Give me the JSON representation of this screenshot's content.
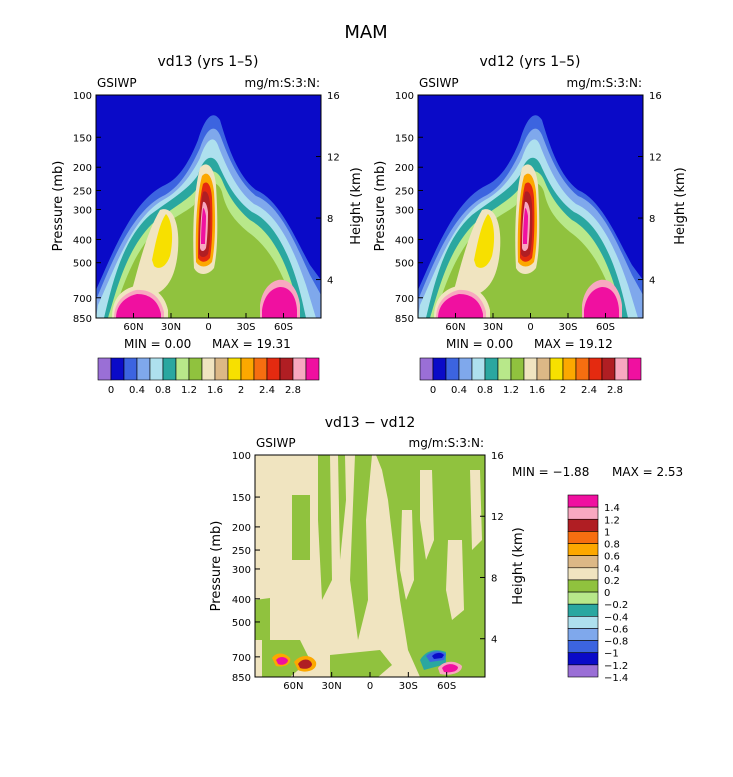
{
  "page_title": "MAM",
  "colors": {
    "background": "#ffffff",
    "scale_main": [
      "#9a6fd6",
      "#0a0ac8",
      "#3c64e0",
      "#7fa8ec",
      "#aee0ee",
      "#2aa7a0",
      "#b8e88a",
      "#90c23e",
      "#f0e4c0",
      "#dcb886",
      "#f7e000",
      "#fca800",
      "#f66e10",
      "#e42a10",
      "#b01e23",
      "#f8a8c0",
      "#f010a0"
    ],
    "scale_diff": [
      "#9a6fd6",
      "#0a0ac8",
      "#3c64e0",
      "#7fa8ec",
      "#aee0ee",
      "#2aa7a0",
      "#b8e88a",
      "#90c23e",
      "#f0e4c0",
      "#dcb886",
      "#fca800",
      "#f66e10",
      "#b01e23",
      "#f8a8c0",
      "#f010a0"
    ]
  },
  "chart_data": [
    {
      "type": "heatmap",
      "title": "vd13 (yrs 1–5)",
      "left_label": "GSIWP",
      "right_label": "mg/m:S:3:N:",
      "xlabel": "",
      "ylabel": "Pressure (mb)",
      "y2label": "Height (km)",
      "x_ticks": [
        "60N",
        "30N",
        "0",
        "30S",
        "60S"
      ],
      "y_ticks": [
        "100",
        "150",
        "200",
        "250",
        "300",
        "400",
        "500",
        "700",
        "850"
      ],
      "y2_ticks": [
        "16",
        "12",
        "8",
        "4"
      ],
      "min_text": "MIN =    0.00",
      "max_text": "MAX =   19.31",
      "min": 0.0,
      "max": 19.31,
      "colorbar_labels": [
        "0",
        "0.4",
        "0.8",
        "1.2",
        "1.6",
        "2",
        "2.4",
        "2.8"
      ]
    },
    {
      "type": "heatmap",
      "title": "vd12 (yrs 1–5)",
      "left_label": "GSIWP",
      "right_label": "mg/m:S:3:N:",
      "xlabel": "",
      "ylabel": "Pressure (mb)",
      "y2label": "Height (km)",
      "x_ticks": [
        "60N",
        "30N",
        "0",
        "30S",
        "60S"
      ],
      "y_ticks": [
        "100",
        "150",
        "200",
        "250",
        "300",
        "400",
        "500",
        "700",
        "850"
      ],
      "y2_ticks": [
        "16",
        "12",
        "8",
        "4"
      ],
      "min_text": "MIN =    0.00",
      "max_text": "MAX =   19.12",
      "min": 0.0,
      "max": 19.12,
      "colorbar_labels": [
        "0",
        "0.4",
        "0.8",
        "1.2",
        "1.6",
        "2",
        "2.4",
        "2.8"
      ]
    },
    {
      "type": "heatmap",
      "title": "vd13 − vd12",
      "left_label": "GSIWP",
      "right_label": "mg/m:S:3:N:",
      "xlabel": "",
      "ylabel": "Pressure (mb)",
      "y2label": "Height (km)",
      "x_ticks": [
        "60N",
        "30N",
        "0",
        "30S",
        "60S"
      ],
      "y_ticks": [
        "100",
        "150",
        "200",
        "250",
        "300",
        "400",
        "500",
        "700",
        "850"
      ],
      "y2_ticks": [
        "16",
        "12",
        "8",
        "4"
      ],
      "min_text": "MIN =   −1.88",
      "max_text": "MAX =    2.53",
      "min": -1.88,
      "max": 2.53,
      "legend_labels": [
        "1.4",
        "1.2",
        "1",
        "0.8",
        "0.6",
        "0.4",
        "0.2",
        "0",
        "−0.2",
        "−0.4",
        "−0.6",
        "−0.8",
        "−1",
        "−1.2",
        "−1.4"
      ]
    }
  ]
}
